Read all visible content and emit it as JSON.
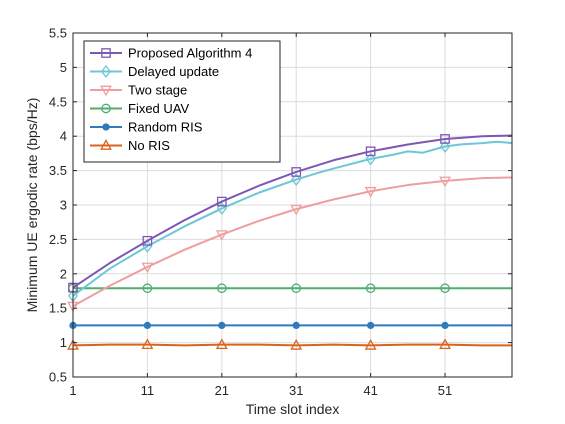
{
  "chart_data": {
    "type": "line",
    "xlabel": "Time slot index",
    "ylabel": "Minimum UE ergodic rate (bps/Hz)",
    "xlim": [
      1,
      60
    ],
    "ylim": [
      0.5,
      5.5
    ],
    "xticks": [
      1,
      11,
      21,
      31,
      41,
      51
    ],
    "xtick_labels": [
      "1",
      "11",
      "21",
      "31",
      "41",
      "51"
    ],
    "yticks": [
      0.5,
      1,
      1.5,
      2,
      2.5,
      3,
      3.5,
      4,
      4.5,
      5,
      5.5
    ],
    "ytick_labels": [
      "0.5",
      "1",
      "1.5",
      "2",
      "2.5",
      "3",
      "3.5",
      "4",
      "4.5",
      "5",
      "5.5"
    ],
    "grid": true,
    "legend_position": "top-left",
    "marker_x": [
      1,
      11,
      21,
      31,
      41,
      51
    ],
    "series": [
      {
        "name": "Proposed Algorithm 4",
        "color": "#7E57B4",
        "marker": "square",
        "x": [
          1,
          6,
          11,
          16,
          21,
          26,
          31,
          36,
          41,
          46,
          51,
          56,
          60
        ],
        "y": [
          1.8,
          2.16,
          2.48,
          2.78,
          3.05,
          3.28,
          3.48,
          3.65,
          3.78,
          3.88,
          3.96,
          4.0,
          4.01
        ]
      },
      {
        "name": "Delayed update",
        "color": "#6CC7D6",
        "marker": "diamond",
        "x": [
          1,
          6,
          11,
          16,
          21,
          26,
          31,
          34,
          36,
          41,
          44,
          46,
          48,
          51,
          53,
          56,
          58,
          60
        ],
        "y": [
          1.68,
          2.08,
          2.4,
          2.69,
          2.95,
          3.18,
          3.37,
          3.47,
          3.53,
          3.67,
          3.73,
          3.78,
          3.76,
          3.85,
          3.88,
          3.9,
          3.92,
          3.9
        ]
      },
      {
        "name": "Two stage",
        "color": "#EF9E9E",
        "marker": "triangle-down",
        "x": [
          1,
          6,
          11,
          16,
          21,
          26,
          31,
          36,
          41,
          46,
          51,
          56,
          60
        ],
        "y": [
          1.53,
          1.83,
          2.1,
          2.35,
          2.57,
          2.77,
          2.94,
          3.08,
          3.2,
          3.29,
          3.35,
          3.39,
          3.4
        ]
      },
      {
        "name": "Fixed UAV",
        "color": "#4DAE6E",
        "marker": "circle-open",
        "x": [
          1,
          11,
          21,
          31,
          41,
          51,
          60
        ],
        "y": [
          1.79,
          1.79,
          1.79,
          1.79,
          1.79,
          1.79,
          1.79
        ]
      },
      {
        "name": "Random RIS",
        "color": "#2F7BBE",
        "marker": "circle-filled",
        "x": [
          1,
          11,
          21,
          31,
          41,
          51,
          60
        ],
        "y": [
          1.25,
          1.25,
          1.25,
          1.25,
          1.25,
          1.25,
          1.25
        ]
      },
      {
        "name": "No RIS",
        "color": "#D9641C",
        "marker": "triangle-up",
        "x": [
          1,
          6,
          11,
          16,
          21,
          26,
          31,
          36,
          41,
          46,
          51,
          56,
          60
        ],
        "y": [
          0.96,
          0.97,
          0.97,
          0.96,
          0.97,
          0.97,
          0.96,
          0.97,
          0.96,
          0.97,
          0.97,
          0.96,
          0.96
        ]
      }
    ]
  }
}
